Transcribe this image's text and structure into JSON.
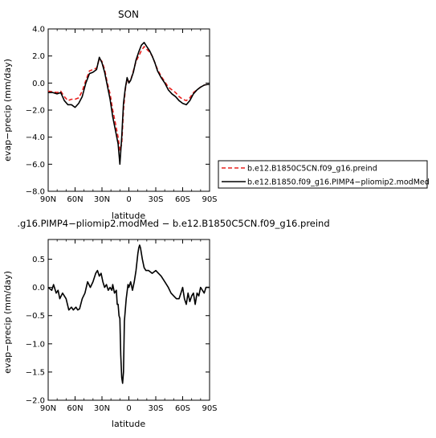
{
  "chart_data": [
    {
      "type": "line",
      "title": "SON",
      "xlabel": "latitude",
      "ylabel": "evap−precip (mm/day)",
      "x_ticks": [
        {
          "value": 90,
          "label": "90N"
        },
        {
          "value": 60,
          "label": "60N"
        },
        {
          "value": 30,
          "label": "30N"
        },
        {
          "value": 0,
          "label": "0"
        },
        {
          "value": -30,
          "label": "30S"
        },
        {
          "value": -60,
          "label": "60S"
        },
        {
          "value": -90,
          "label": "90S"
        }
      ],
      "y_ticks": [
        4.0,
        2.0,
        0.0,
        -2.0,
        -4.0,
        -6.0,
        -8.0
      ],
      "y_tick_labels": [
        "4.0",
        "2.0",
        "0.0",
        "−2.0",
        "−4.0",
        "−6.0",
        "−8.0"
      ],
      "xlim": [
        90,
        -90
      ],
      "ylim": [
        -8,
        4
      ],
      "legend_position": "right",
      "series": [
        {
          "name": "b.e12.B1850C5CN.f09_g16.preind",
          "color": "#e8201e",
          "dash": "dashed",
          "x": [
            90,
            85,
            80,
            76,
            72,
            68,
            64,
            60,
            56,
            52,
            48,
            44,
            40,
            36,
            33,
            30,
            27,
            24,
            21,
            18,
            15,
            12,
            10,
            8,
            6,
            4,
            2,
            0,
            -2,
            -5,
            -8,
            -11,
            -14,
            -17,
            -20,
            -23,
            -26,
            -29,
            -32,
            -36,
            -40,
            -44,
            -48,
            -52,
            -56,
            -60,
            -64,
            -68,
            -72,
            -76,
            -80,
            -84,
            -88,
            -90
          ],
          "y": [
            -0.6,
            -0.65,
            -0.7,
            -0.6,
            -1.0,
            -1.3,
            -1.2,
            -1.2,
            -1.1,
            -0.6,
            0.2,
            0.9,
            1.0,
            1.1,
            1.8,
            1.6,
            1.0,
            0.0,
            -0.8,
            -2.0,
            -3.0,
            -4.0,
            -5.0,
            -4.5,
            -2.0,
            -0.5,
            0.3,
            0.1,
            0.2,
            0.9,
            1.6,
            2.0,
            2.4,
            2.7,
            2.5,
            2.3,
            2.0,
            1.5,
            1.0,
            0.5,
            0.1,
            -0.3,
            -0.5,
            -0.7,
            -1.0,
            -1.2,
            -1.3,
            -1.1,
            -0.7,
            -0.5,
            -0.3,
            -0.15,
            -0.1,
            -0.1
          ]
        },
        {
          "name": "b.e12.B1850.f09_g16.PIMP4−pliomip2.modMed",
          "color": "#000000",
          "dash": "solid",
          "x": [
            90,
            85,
            80,
            76,
            72,
            68,
            64,
            60,
            56,
            52,
            48,
            44,
            40,
            36,
            33,
            30,
            27,
            24,
            21,
            18,
            15,
            12,
            10,
            8,
            6,
            4,
            2,
            0,
            -2,
            -5,
            -8,
            -11,
            -14,
            -17,
            -20,
            -23,
            -26,
            -29,
            -32,
            -36,
            -40,
            -44,
            -48,
            -52,
            -56,
            -60,
            -64,
            -68,
            -72,
            -76,
            -80,
            -84,
            -88,
            -90
          ],
          "y": [
            -0.7,
            -0.7,
            -0.8,
            -0.7,
            -1.3,
            -1.6,
            -1.6,
            -1.8,
            -1.5,
            -1.0,
            0.0,
            0.7,
            0.8,
            1.0,
            1.9,
            1.5,
            0.8,
            -0.2,
            -1.2,
            -2.5,
            -3.5,
            -4.5,
            -6.0,
            -4.0,
            -1.5,
            -0.4,
            0.4,
            0.0,
            0.2,
            0.8,
            1.7,
            2.3,
            2.8,
            3.0,
            2.7,
            2.4,
            2.0,
            1.5,
            0.9,
            0.4,
            0.0,
            -0.5,
            -0.8,
            -1.0,
            -1.3,
            -1.5,
            -1.6,
            -1.3,
            -0.8,
            -0.5,
            -0.3,
            -0.15,
            -0.1,
            -0.1
          ]
        }
      ]
    },
    {
      "type": "line",
      "title": ".g16.PIMP4−pliomip2.modMed − b.e12.B1850C5CN.f09_g16.preind",
      "xlabel": "latitude",
      "ylabel": "evap−precip (mm/day)",
      "x_ticks": [
        {
          "value": 90,
          "label": "90N"
        },
        {
          "value": 60,
          "label": "60N"
        },
        {
          "value": 30,
          "label": "30N"
        },
        {
          "value": 0,
          "label": "0"
        },
        {
          "value": -30,
          "label": "30S"
        },
        {
          "value": -60,
          "label": "60S"
        },
        {
          "value": -90,
          "label": "90S"
        }
      ],
      "y_ticks": [
        0.5,
        0.0,
        -0.5,
        -1.0,
        -1.5,
        -2.0
      ],
      "y_tick_labels": [
        "0.5",
        "0.0",
        "−0.5",
        "−1.0",
        "−1.5",
        "−2.0"
      ],
      "xlim": [
        90,
        -90
      ],
      "ylim": [
        -2.0,
        0.85
      ],
      "series": [
        {
          "color": "#000000",
          "dash": "solid",
          "x": [
            90,
            86,
            84,
            81,
            79,
            77,
            74,
            72,
            70,
            67,
            64,
            62,
            59,
            57,
            55,
            52,
            49,
            46,
            43,
            40,
            37,
            35,
            33,
            31,
            29,
            27,
            25,
            23,
            21,
            19,
            18,
            16,
            14,
            13,
            12,
            11,
            10,
            9,
            8,
            7,
            6,
            5,
            3,
            1,
            0,
            -2,
            -4,
            -6,
            -8,
            -10,
            -11,
            -12,
            -13,
            -15,
            -17,
            -19,
            -22,
            -26,
            -30,
            -33,
            -36,
            -40,
            -44,
            -47,
            -50,
            -53,
            -56,
            -58,
            -60,
            -61,
            -62,
            -64,
            -66,
            -68,
            -70,
            -72,
            -74,
            -76,
            -78,
            -80,
            -82,
            -84,
            -86,
            -88,
            -90
          ],
          "y": [
            0.0,
            -0.05,
            0.05,
            -0.1,
            -0.05,
            -0.2,
            -0.1,
            -0.15,
            -0.2,
            -0.4,
            -0.35,
            -0.4,
            -0.35,
            -0.4,
            -0.38,
            -0.2,
            -0.1,
            0.1,
            0.0,
            0.1,
            0.25,
            0.3,
            0.2,
            0.25,
            0.1,
            0.0,
            0.05,
            -0.05,
            0.0,
            -0.05,
            0.05,
            -0.1,
            -0.05,
            -0.3,
            -0.3,
            -0.5,
            -0.55,
            -1.2,
            -1.6,
            -1.7,
            -1.5,
            -0.6,
            -0.2,
            0.05,
            0.0,
            0.1,
            -0.05,
            0.1,
            0.3,
            0.6,
            0.7,
            0.75,
            0.7,
            0.5,
            0.35,
            0.3,
            0.3,
            0.25,
            0.3,
            0.25,
            0.2,
            0.1,
            0.0,
            -0.1,
            -0.15,
            -0.2,
            -0.2,
            -0.1,
            0.0,
            -0.1,
            -0.2,
            -0.3,
            -0.1,
            -0.25,
            -0.15,
            -0.1,
            -0.3,
            -0.1,
            -0.15,
            0.0,
            -0.05,
            -0.1,
            0.0,
            0.0,
            0.0
          ]
        }
      ]
    }
  ]
}
